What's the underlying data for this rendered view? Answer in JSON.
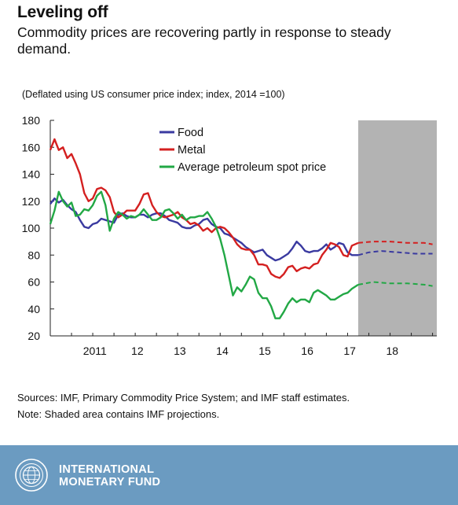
{
  "header": {
    "title": "Leveling off",
    "subtitle": "Commodity prices are recovering partly in response to steady demand.",
    "units": "(Deflated using US consumer price index; index, 2014 =100)"
  },
  "notes": {
    "sources": "Sources: IMF, Primary Commodity Price System; and IMF staff estimates.",
    "note": "Note: Shaded area contains IMF projections."
  },
  "footer": {
    "org_line1": "INTERNATIONAL",
    "org_line2": "MONETARY FUND",
    "colors": {
      "background": "#6b9bc1",
      "text": "#ffffff"
    }
  },
  "chart_data": {
    "type": "line",
    "x_unit": "year (decimal)",
    "xlim": [
      2010,
      2019.1
    ],
    "ylim": [
      20,
      180
    ],
    "y_ticks": [
      20,
      40,
      60,
      80,
      100,
      120,
      140,
      160,
      180
    ],
    "x_ticks": [
      {
        "x": 2011,
        "label": "2011"
      },
      {
        "x": 2012,
        "label": "12"
      },
      {
        "x": 2013,
        "label": "13"
      },
      {
        "x": 2014,
        "label": "14"
      },
      {
        "x": 2015,
        "label": "15"
      },
      {
        "x": 2016,
        "label": "16"
      },
      {
        "x": 2017,
        "label": "17"
      },
      {
        "x": 2018,
        "label": "18"
      }
    ],
    "projection_start": 2017.25,
    "shaded_range": [
      2017.25,
      2019.1
    ],
    "shade_color": "#b3b3b3",
    "grid": false,
    "legend_position": "top-center",
    "series": [
      {
        "name": "Food",
        "color": "#3a3aa0",
        "points": [
          [
            2010.0,
            118
          ],
          [
            2010.1,
            122
          ],
          [
            2010.2,
            119
          ],
          [
            2010.3,
            121
          ],
          [
            2010.4,
            117
          ],
          [
            2010.5,
            114
          ],
          [
            2010.6,
            112
          ],
          [
            2010.7,
            106
          ],
          [
            2010.8,
            101
          ],
          [
            2010.9,
            100
          ],
          [
            2011.0,
            103
          ],
          [
            2011.1,
            104
          ],
          [
            2011.2,
            107
          ],
          [
            2011.3,
            106
          ],
          [
            2011.4,
            105
          ],
          [
            2011.5,
            104
          ],
          [
            2011.6,
            110
          ],
          [
            2011.7,
            111
          ],
          [
            2011.8,
            109
          ],
          [
            2011.9,
            108
          ],
          [
            2012.0,
            108
          ],
          [
            2012.1,
            110
          ],
          [
            2012.2,
            110
          ],
          [
            2012.3,
            108
          ],
          [
            2012.4,
            110
          ],
          [
            2012.5,
            111
          ],
          [
            2012.6,
            111
          ],
          [
            2012.7,
            109
          ],
          [
            2012.8,
            106
          ],
          [
            2012.9,
            105
          ],
          [
            2013.0,
            104
          ],
          [
            2013.1,
            101
          ],
          [
            2013.2,
            100
          ],
          [
            2013.3,
            100
          ],
          [
            2013.4,
            102
          ],
          [
            2013.5,
            103
          ],
          [
            2013.6,
            106
          ],
          [
            2013.7,
            107
          ],
          [
            2013.8,
            103
          ],
          [
            2013.9,
            101
          ],
          [
            2014.0,
            100
          ],
          [
            2014.1,
            96
          ],
          [
            2014.2,
            95
          ],
          [
            2014.3,
            93
          ],
          [
            2014.4,
            91
          ],
          [
            2014.5,
            89
          ],
          [
            2014.6,
            86
          ],
          [
            2014.7,
            84
          ],
          [
            2014.8,
            82
          ],
          [
            2014.9,
            83
          ],
          [
            2015.0,
            84
          ],
          [
            2015.1,
            80
          ],
          [
            2015.2,
            78
          ],
          [
            2015.3,
            76
          ],
          [
            2015.4,
            77
          ],
          [
            2015.5,
            79
          ],
          [
            2015.6,
            81
          ],
          [
            2015.7,
            85
          ],
          [
            2015.8,
            90
          ],
          [
            2015.9,
            87
          ],
          [
            2016.0,
            83
          ],
          [
            2016.1,
            82
          ],
          [
            2016.2,
            83
          ],
          [
            2016.3,
            83
          ],
          [
            2016.4,
            85
          ],
          [
            2016.5,
            88
          ],
          [
            2016.6,
            84
          ],
          [
            2016.7,
            86
          ],
          [
            2016.8,
            89
          ],
          [
            2016.9,
            88
          ],
          [
            2017.0,
            82
          ],
          [
            2017.1,
            80
          ],
          [
            2017.25,
            80
          ]
        ],
        "projection": [
          [
            2017.25,
            80
          ],
          [
            2017.5,
            82
          ],
          [
            2017.8,
            83
          ],
          [
            2018.2,
            82
          ],
          [
            2018.6,
            81
          ],
          [
            2019.0,
            81
          ]
        ]
      },
      {
        "name": "Metal",
        "color": "#d42020",
        "points": [
          [
            2010.0,
            158
          ],
          [
            2010.1,
            166
          ],
          [
            2010.2,
            158
          ],
          [
            2010.3,
            160
          ],
          [
            2010.4,
            152
          ],
          [
            2010.5,
            155
          ],
          [
            2010.6,
            148
          ],
          [
            2010.7,
            140
          ],
          [
            2010.8,
            126
          ],
          [
            2010.9,
            120
          ],
          [
            2011.0,
            122
          ],
          [
            2011.1,
            129
          ],
          [
            2011.2,
            130
          ],
          [
            2011.3,
            128
          ],
          [
            2011.4,
            123
          ],
          [
            2011.5,
            112
          ],
          [
            2011.6,
            108
          ],
          [
            2011.7,
            110
          ],
          [
            2011.8,
            113
          ],
          [
            2011.9,
            113
          ],
          [
            2012.0,
            113
          ],
          [
            2012.1,
            118
          ],
          [
            2012.2,
            125
          ],
          [
            2012.3,
            126
          ],
          [
            2012.4,
            117
          ],
          [
            2012.5,
            112
          ],
          [
            2012.6,
            109
          ],
          [
            2012.7,
            108
          ],
          [
            2012.8,
            109
          ],
          [
            2012.9,
            110
          ],
          [
            2013.0,
            112
          ],
          [
            2013.1,
            108
          ],
          [
            2013.2,
            106
          ],
          [
            2013.3,
            103
          ],
          [
            2013.4,
            104
          ],
          [
            2013.5,
            102
          ],
          [
            2013.6,
            98
          ],
          [
            2013.7,
            100
          ],
          [
            2013.8,
            97
          ],
          [
            2013.9,
            100
          ],
          [
            2014.0,
            101
          ],
          [
            2014.1,
            100
          ],
          [
            2014.2,
            97
          ],
          [
            2014.3,
            93
          ],
          [
            2014.4,
            88
          ],
          [
            2014.5,
            85
          ],
          [
            2014.6,
            84
          ],
          [
            2014.7,
            84
          ],
          [
            2014.8,
            80
          ],
          [
            2014.9,
            73
          ],
          [
            2015.0,
            73
          ],
          [
            2015.1,
            72
          ],
          [
            2015.2,
            66
          ],
          [
            2015.3,
            64
          ],
          [
            2015.4,
            63
          ],
          [
            2015.5,
            66
          ],
          [
            2015.6,
            71
          ],
          [
            2015.7,
            72
          ],
          [
            2015.8,
            68
          ],
          [
            2015.9,
            70
          ],
          [
            2016.0,
            71
          ],
          [
            2016.1,
            70
          ],
          [
            2016.2,
            73
          ],
          [
            2016.3,
            74
          ],
          [
            2016.4,
            80
          ],
          [
            2016.5,
            84
          ],
          [
            2016.6,
            89
          ],
          [
            2016.7,
            88
          ],
          [
            2016.8,
            86
          ],
          [
            2016.9,
            80
          ],
          [
            2017.0,
            79
          ],
          [
            2017.1,
            87
          ],
          [
            2017.25,
            89
          ]
        ],
        "projection": [
          [
            2017.25,
            89
          ],
          [
            2017.6,
            90
          ],
          [
            2018.0,
            90
          ],
          [
            2018.4,
            89
          ],
          [
            2018.8,
            89
          ],
          [
            2019.0,
            88
          ]
        ]
      },
      {
        "name": "Average petroleum spot price",
        "color": "#22a845",
        "points": [
          [
            2010.0,
            103
          ],
          [
            2010.1,
            113
          ],
          [
            2010.2,
            127
          ],
          [
            2010.3,
            120
          ],
          [
            2010.4,
            116
          ],
          [
            2010.5,
            119
          ],
          [
            2010.6,
            109
          ],
          [
            2010.7,
            110
          ],
          [
            2010.8,
            114
          ],
          [
            2010.9,
            113
          ],
          [
            2011.0,
            117
          ],
          [
            2011.1,
            124
          ],
          [
            2011.2,
            127
          ],
          [
            2011.3,
            117
          ],
          [
            2011.4,
            98
          ],
          [
            2011.5,
            107
          ],
          [
            2011.6,
            112
          ],
          [
            2011.7,
            110
          ],
          [
            2011.8,
            107
          ],
          [
            2011.9,
            109
          ],
          [
            2012.0,
            108
          ],
          [
            2012.1,
            110
          ],
          [
            2012.2,
            114
          ],
          [
            2012.3,
            110
          ],
          [
            2012.4,
            106
          ],
          [
            2012.5,
            106
          ],
          [
            2012.6,
            108
          ],
          [
            2012.7,
            113
          ],
          [
            2012.8,
            114
          ],
          [
            2012.9,
            111
          ],
          [
            2013.0,
            107
          ],
          [
            2013.1,
            110
          ],
          [
            2013.2,
            106
          ],
          [
            2013.3,
            108
          ],
          [
            2013.4,
            108
          ],
          [
            2013.5,
            109
          ],
          [
            2013.6,
            109
          ],
          [
            2013.7,
            112
          ],
          [
            2013.8,
            107
          ],
          [
            2013.9,
            101
          ],
          [
            2014.0,
            92
          ],
          [
            2014.1,
            80
          ],
          [
            2014.2,
            65
          ],
          [
            2014.3,
            50
          ],
          [
            2014.4,
            56
          ],
          [
            2014.5,
            53
          ],
          [
            2014.6,
            58
          ],
          [
            2014.7,
            64
          ],
          [
            2014.8,
            62
          ],
          [
            2014.9,
            52
          ],
          [
            2015.0,
            48
          ],
          [
            2015.1,
            48
          ],
          [
            2015.2,
            42
          ],
          [
            2015.3,
            33
          ],
          [
            2015.4,
            33
          ],
          [
            2015.5,
            38
          ],
          [
            2015.6,
            44
          ],
          [
            2015.7,
            48
          ],
          [
            2015.8,
            45
          ],
          [
            2015.9,
            47
          ],
          [
            2016.0,
            47
          ],
          [
            2016.1,
            45
          ],
          [
            2016.2,
            52
          ],
          [
            2016.3,
            54
          ],
          [
            2016.4,
            52
          ],
          [
            2016.5,
            50
          ],
          [
            2016.6,
            47
          ],
          [
            2016.7,
            47
          ],
          [
            2016.8,
            49
          ],
          [
            2016.9,
            51
          ],
          [
            2017.0,
            52
          ],
          [
            2017.1,
            55
          ],
          [
            2017.25,
            58
          ]
        ],
        "projection": [
          [
            2017.25,
            58
          ],
          [
            2017.6,
            60
          ],
          [
            2018.0,
            59
          ],
          [
            2018.4,
            59
          ],
          [
            2018.8,
            58
          ],
          [
            2019.0,
            57
          ]
        ]
      }
    ]
  }
}
